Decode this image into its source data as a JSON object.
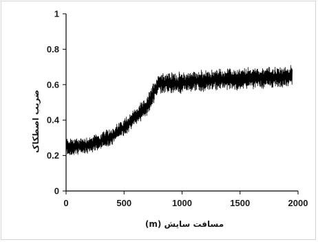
{
  "chart_data": {
    "type": "line",
    "title": "",
    "xlabel": "مسافت سایش (m)",
    "ylabel": "ضریب اصطکاک",
    "xlim": [
      0,
      2000
    ],
    "ylim": [
      0,
      1
    ],
    "x_ticks": [
      "0",
      "500",
      "1000",
      "1500",
      "2000"
    ],
    "y_ticks": [
      "0",
      "0.2",
      "0.4",
      "0.6",
      "0.8",
      "1"
    ],
    "grid": false,
    "legend": "none",
    "series": [
      {
        "color": "#000000",
        "x": [
          0,
          100,
          200,
          300,
          400,
          500,
          600,
          700,
          750,
          800,
          900,
          1000,
          1100,
          1200,
          1300,
          1400,
          1500,
          1600,
          1700,
          1800,
          1900,
          1950
        ],
        "y": [
          0.25,
          0.25,
          0.26,
          0.28,
          0.31,
          0.36,
          0.42,
          0.48,
          0.55,
          0.61,
          0.61,
          0.61,
          0.62,
          0.62,
          0.63,
          0.63,
          0.63,
          0.64,
          0.64,
          0.64,
          0.64,
          0.65
        ]
      }
    ]
  }
}
